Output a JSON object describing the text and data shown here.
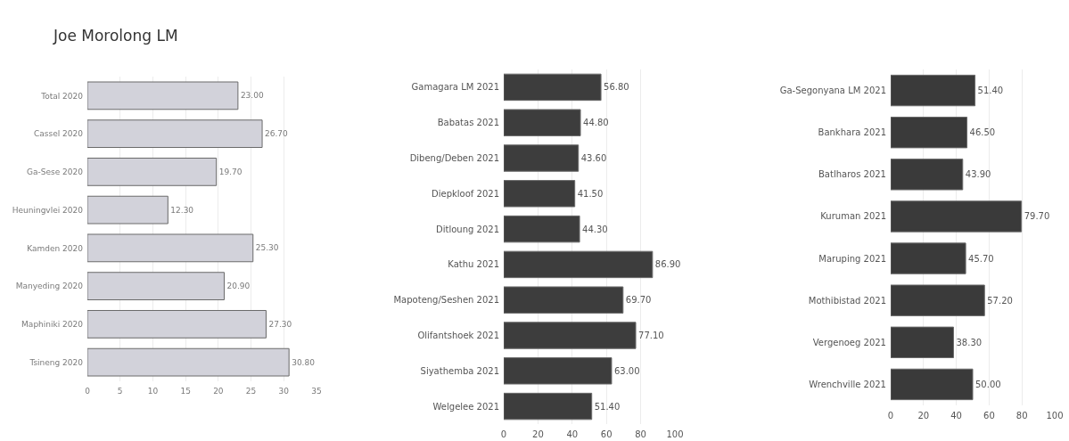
{
  "chart_data": [
    {
      "type": "bar",
      "orientation": "horizontal",
      "title": "Joe Morolong LM",
      "categories": [
        "Total 2020",
        "Cassel 2020",
        "Ga-Sese 2020",
        "Heuningvlei 2020",
        "Kamden 2020",
        "Manyeding 2020",
        "Maphiniki 2020",
        "Tsineng 2020"
      ],
      "values": [
        23.0,
        26.7,
        19.7,
        12.3,
        25.3,
        20.9,
        27.3,
        30.8
      ],
      "value_labels": [
        "23.00",
        "26.70",
        "19.70",
        "12.30",
        "25.30",
        "20.90",
        "27.30",
        "30.80"
      ],
      "color": "#d2d2da",
      "xlim": [
        0,
        35
      ],
      "xticks": [
        0,
        5,
        10,
        15,
        20,
        25,
        30,
        35
      ],
      "grid": "x"
    },
    {
      "type": "bar",
      "orientation": "horizontal",
      "categories": [
        "Gamagara LM 2021",
        "Babatas 2021",
        "Dibeng/Deben 2021",
        "Diepkloof 2021",
        "Ditloung 2021",
        "Kathu 2021",
        "Mapoteng/Seshen 2021",
        "Olifantshoek 2021",
        "Siyathemba 2021",
        "Welgelee 2021"
      ],
      "values": [
        56.8,
        44.8,
        43.6,
        41.5,
        44.3,
        86.9,
        69.7,
        77.1,
        63.0,
        51.4
      ],
      "value_labels": [
        "56.80",
        "44.80",
        "43.60",
        "41.50",
        "44.30",
        "86.90",
        "69.70",
        "77.10",
        "63.00",
        "51.40"
      ],
      "color": "#3d3d3d",
      "xlim": [
        0,
        100
      ],
      "xticks": [
        0,
        20,
        40,
        60,
        80,
        100
      ],
      "grid": "x"
    },
    {
      "type": "bar",
      "orientation": "horizontal",
      "categories": [
        "Ga-Segonyana LM 2021",
        "Bankhara 2021",
        "Batlharos 2021",
        "Kuruman 2021",
        "Maruping 2021",
        "Mothibistad 2021",
        "Vergenoeg 2021",
        "Wrenchville 2021"
      ],
      "values": [
        51.4,
        46.5,
        43.9,
        79.7,
        45.7,
        57.2,
        38.3,
        50.0
      ],
      "value_labels": [
        "51.40",
        "46.50",
        "43.90",
        "79.70",
        "45.70",
        "57.20",
        "38.30",
        "50.00"
      ],
      "color": "#3a3a3a",
      "xlim": [
        0,
        100
      ],
      "xticks": [
        0,
        20,
        40,
        60,
        80,
        100
      ],
      "grid": "x"
    }
  ]
}
